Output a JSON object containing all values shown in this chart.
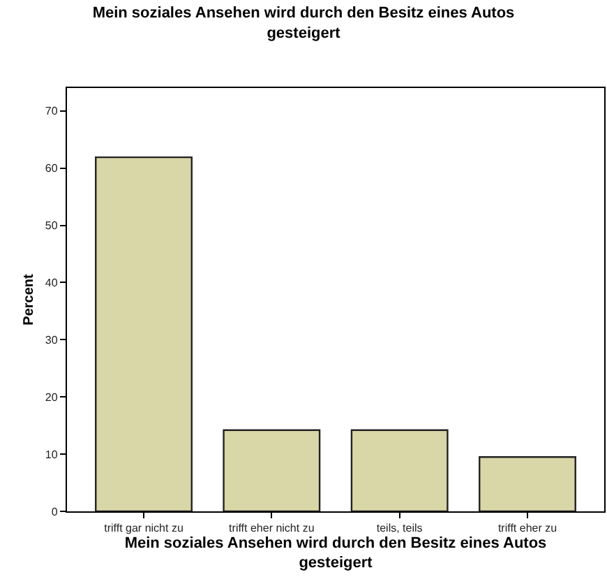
{
  "chart_data": {
    "type": "bar",
    "title": "Mein soziales Ansehen wird durch den Besitz eines Autos gesteigert",
    "xlabel": "Mein soziales Ansehen wird durch den Besitz eines Autos gesteigert",
    "ylabel": "Percent",
    "categories": [
      "trifft gar nicht zu",
      "trifft eher nicht zu",
      "teils, teils",
      "trifft eher zu"
    ],
    "values": [
      61.9,
      14.2,
      14.2,
      9.5
    ],
    "color": "#d9d7a8",
    "ylim": [
      0,
      74
    ],
    "yticks": [
      0,
      10,
      20,
      30,
      40,
      50,
      60,
      70
    ],
    "grid": false
  }
}
